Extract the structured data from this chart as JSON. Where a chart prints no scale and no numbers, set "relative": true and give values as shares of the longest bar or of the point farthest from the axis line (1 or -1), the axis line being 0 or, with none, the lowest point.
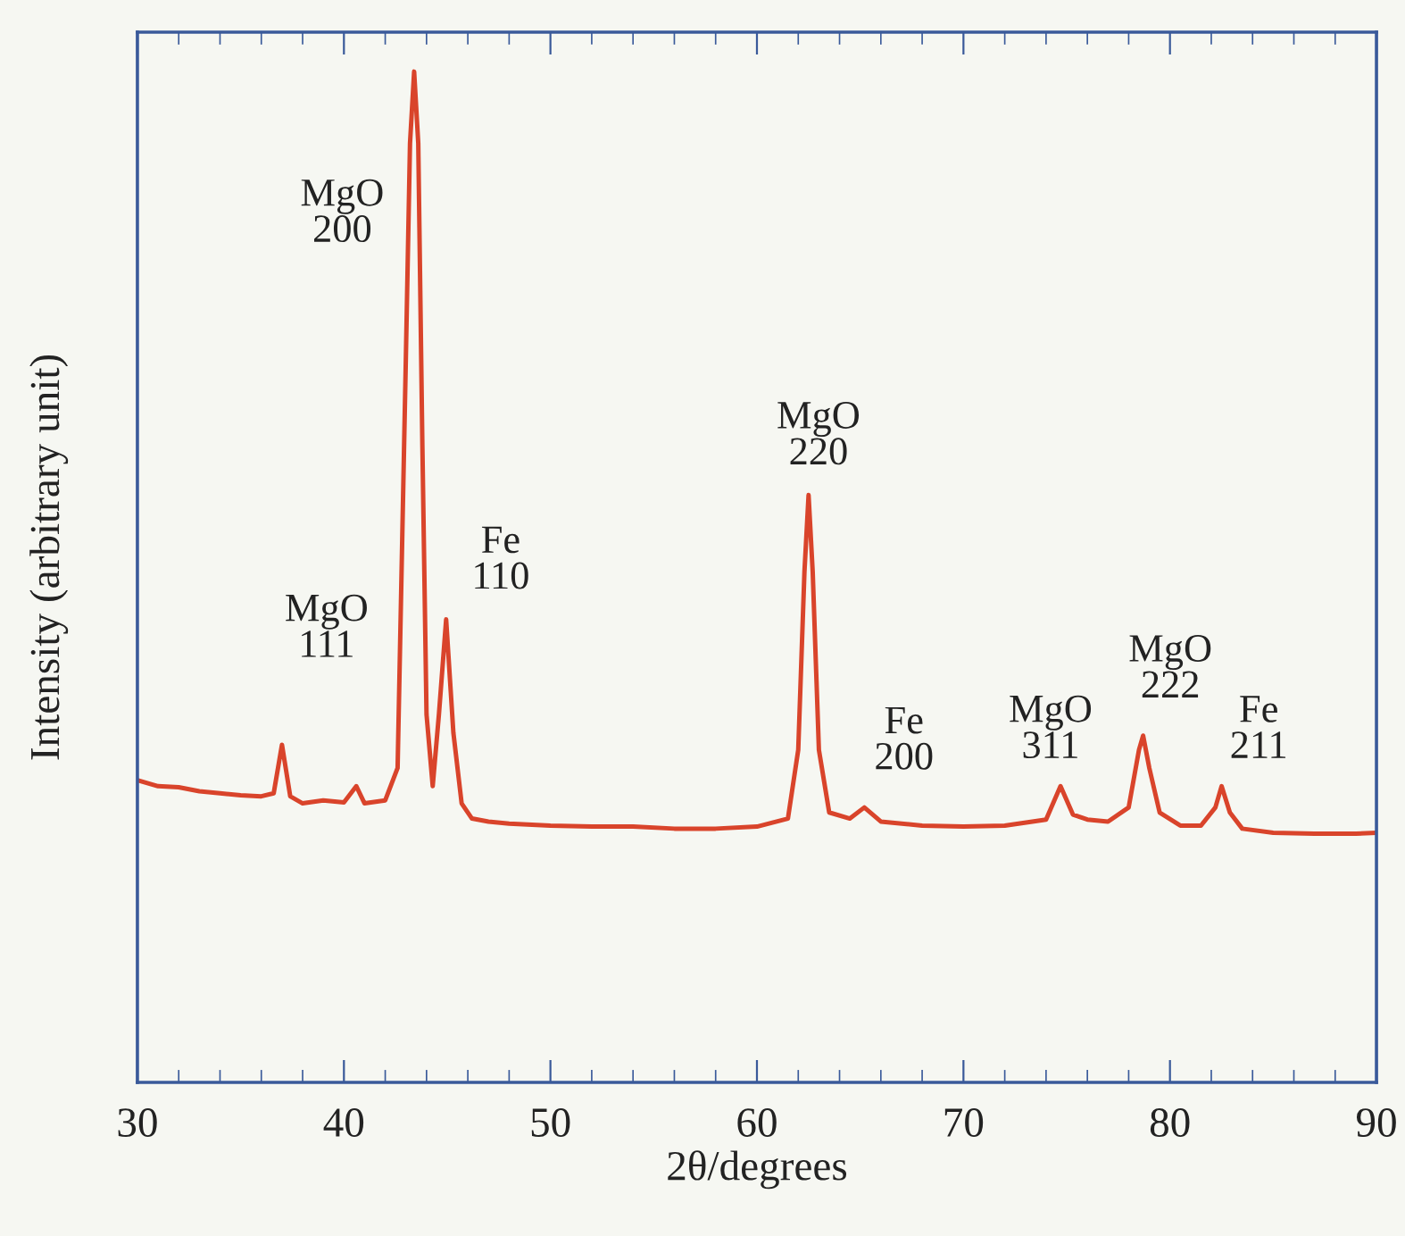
{
  "chart_data": {
    "type": "line",
    "relative": true,
    "xlabel": "2θ/degrees",
    "ylabel": "Intensity (arbitrary unit)",
    "x": [
      30,
      31,
      32,
      33,
      34,
      35,
      36,
      36.6,
      37.0,
      37.4,
      38,
      39,
      40,
      40.6,
      41,
      42,
      42.6,
      43.0,
      43.2,
      43.4,
      43.6,
      43.8,
      44.0,
      44.3,
      44.6,
      44.95,
      45.3,
      45.7,
      46.2,
      47,
      48,
      50,
      52,
      54,
      56,
      58,
      60,
      61.5,
      62.0,
      62.3,
      62.5,
      62.7,
      63.0,
      63.5,
      64.5,
      65.2,
      66,
      68,
      70,
      72,
      74,
      74.7,
      75.3,
      76,
      77,
      78,
      78.5,
      78.7,
      79.0,
      79.5,
      80.5,
      81.5,
      82.2,
      82.5,
      82.9,
      83.5,
      85,
      87,
      89,
      90
    ],
    "series": [
      {
        "color": "#d9442b",
        "values": [
          0.299,
          0.293,
          0.292,
          0.288,
          0.286,
          0.284,
          0.283,
          0.286,
          0.334,
          0.283,
          0.276,
          0.279,
          0.277,
          0.293,
          0.276,
          0.279,
          0.311,
          0.717,
          0.929,
          1,
          0.929,
          0.629,
          0.364,
          0.293,
          0.364,
          0.458,
          0.346,
          0.276,
          0.261,
          0.258,
          0.256,
          0.254,
          0.253,
          0.253,
          0.251,
          0.251,
          0.253,
          0.261,
          0.329,
          0.505,
          0.581,
          0.505,
          0.329,
          0.267,
          0.261,
          0.272,
          0.258,
          0.254,
          0.253,
          0.254,
          0.26,
          0.293,
          0.265,
          0.26,
          0.258,
          0.272,
          0.329,
          0.343,
          0.311,
          0.267,
          0.254,
          0.254,
          0.272,
          0.293,
          0.267,
          0.251,
          0.247,
          0.246,
          0.246,
          0.247
        ]
      }
    ],
    "xlim": [
      30,
      90
    ],
    "xticks": [
      30,
      40,
      50,
      60,
      70,
      80,
      90
    ],
    "grid": false,
    "legend": false,
    "marker": "none",
    "line_style": "solid",
    "annotations": [
      {
        "text": "MgO\n111",
        "x": 37.0,
        "y": 0.334
      },
      {
        "text": "MgO\n200",
        "x": 43.4,
        "y": 1
      },
      {
        "text": "Fe\n110",
        "x": 44.95,
        "y": 0.458
      },
      {
        "text": "MgO\n220",
        "x": 62.5,
        "y": 0.581
      },
      {
        "text": "Fe\n200",
        "x": 65.2,
        "y": 0.272
      },
      {
        "text": "MgO\n311",
        "x": 74.7,
        "y": 0.293
      },
      {
        "text": "MgO\n222",
        "x": 78.7,
        "y": 0.343
      },
      {
        "text": "Fe\n211",
        "x": 82.5,
        "y": 0.293
      }
    ]
  }
}
